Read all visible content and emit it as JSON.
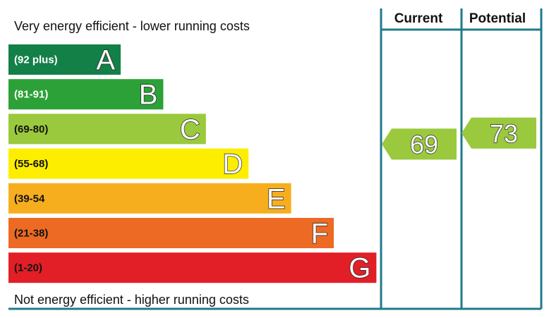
{
  "chart_data": {
    "type": "bar",
    "top_caption": "Very energy efficient - lower running costs",
    "bottom_caption": "Not energy efficient - higher running costs",
    "bands": [
      {
        "letter": "A",
        "range": "(92 plus)",
        "color": "#138047",
        "text": "light"
      },
      {
        "letter": "B",
        "range": "(81-91)",
        "color": "#2ca137",
        "text": "light"
      },
      {
        "letter": "C",
        "range": "(69-80)",
        "color": "#9ac93d",
        "text": "dark"
      },
      {
        "letter": "D",
        "range": "(55-68)",
        "color": "#fdee00",
        "text": "dark"
      },
      {
        "letter": "E",
        "range": "(39-54",
        "color": "#f7ae1e",
        "text": "dark"
      },
      {
        "letter": "F",
        "range": "(21-38)",
        "color": "#ed6a24",
        "text": "dark"
      },
      {
        "letter": "G",
        "range": "(1-20)",
        "color": "#e21e26",
        "text": "dark"
      }
    ],
    "columns": [
      {
        "label": "Current",
        "value": 69,
        "band": "C",
        "color": "#9ac93d"
      },
      {
        "label": "Potential",
        "value": 73,
        "band": "C",
        "color": "#9ac93d"
      }
    ],
    "frame_color": "#1f7a8c"
  }
}
